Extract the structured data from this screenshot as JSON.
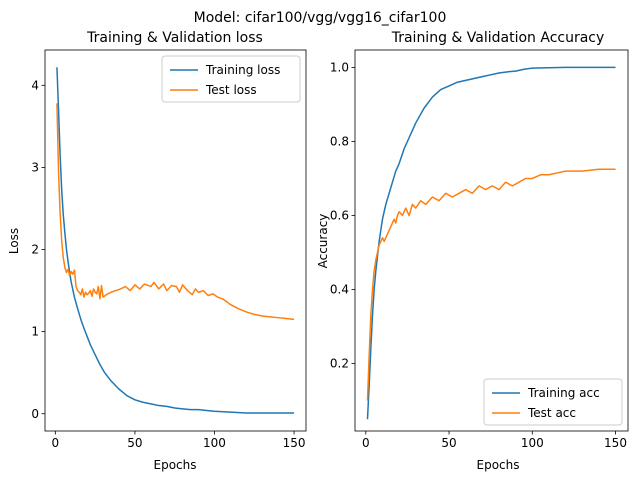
{
  "figure": {
    "suptitle": "Model: cifar100/vgg/vgg16_cifar100"
  },
  "colors": {
    "train": "#1f77b4",
    "test": "#ff7f0e",
    "axis": "#000000"
  },
  "chart_data": [
    {
      "type": "line",
      "title": "Training & Validation loss",
      "xlabel": "Epochs",
      "ylabel": "Loss",
      "xlim": [
        -6.5,
        157.5
      ],
      "ylim": [
        -0.21,
        4.43
      ],
      "xticks": [
        0,
        50,
        100,
        150
      ],
      "yticks": [
        0,
        1,
        2,
        3,
        4
      ],
      "legend_loc": "upper right",
      "series": [
        {
          "name": "Training loss",
          "color": "#1f77b4",
          "x": [
            1,
            2,
            3,
            4,
            5,
            6,
            7,
            8,
            9,
            10,
            12,
            14,
            16,
            18,
            20,
            22,
            25,
            28,
            31,
            35,
            40,
            45,
            50,
            55,
            60,
            65,
            70,
            75,
            80,
            85,
            90,
            95,
            100,
            110,
            120,
            130,
            140,
            150
          ],
          "y": [
            4.22,
            3.7,
            3.15,
            2.72,
            2.42,
            2.2,
            2.0,
            1.85,
            1.72,
            1.6,
            1.42,
            1.28,
            1.15,
            1.04,
            0.94,
            0.84,
            0.72,
            0.6,
            0.5,
            0.4,
            0.3,
            0.22,
            0.17,
            0.14,
            0.12,
            0.1,
            0.09,
            0.07,
            0.06,
            0.05,
            0.05,
            0.04,
            0.03,
            0.02,
            0.01,
            0.01,
            0.01,
            0.01
          ]
        },
        {
          "name": "Test loss",
          "color": "#ff7f0e",
          "x": [
            1,
            2,
            3,
            4,
            5,
            6,
            7,
            8,
            9,
            10,
            11,
            12,
            13,
            14,
            15,
            16,
            17,
            18,
            19,
            20,
            21,
            22,
            23,
            24,
            25,
            26,
            27,
            28,
            29,
            30,
            32,
            35,
            38,
            41,
            44,
            47,
            50,
            53,
            56,
            60,
            62,
            65,
            68,
            70,
            73,
            76,
            78,
            80,
            83,
            86,
            88,
            90,
            93,
            96,
            99,
            102,
            105,
            108,
            110,
            115,
            120,
            125,
            130,
            135,
            140,
            145,
            150
          ],
          "y": [
            3.78,
            2.95,
            2.45,
            2.1,
            1.9,
            1.78,
            1.72,
            1.76,
            1.68,
            1.73,
            1.7,
            1.75,
            1.55,
            1.5,
            1.48,
            1.45,
            1.52,
            1.42,
            1.48,
            1.45,
            1.47,
            1.5,
            1.43,
            1.52,
            1.48,
            1.46,
            1.55,
            1.4,
            1.56,
            1.42,
            1.45,
            1.48,
            1.5,
            1.52,
            1.55,
            1.5,
            1.57,
            1.52,
            1.58,
            1.55,
            1.6,
            1.52,
            1.58,
            1.5,
            1.56,
            1.55,
            1.48,
            1.57,
            1.5,
            1.45,
            1.52,
            1.48,
            1.5,
            1.44,
            1.46,
            1.42,
            1.4,
            1.36,
            1.33,
            1.28,
            1.24,
            1.21,
            1.19,
            1.18,
            1.17,
            1.16,
            1.15
          ]
        }
      ]
    },
    {
      "type": "line",
      "title": "Training & Validation Accuracy",
      "xlabel": "Epochs",
      "ylabel": "Accuracy",
      "xlim": [
        -6.5,
        157.5
      ],
      "ylim": [
        0.018,
        1.047
      ],
      "xticks": [
        0,
        50,
        100,
        150
      ],
      "yticks": [
        0.2,
        0.4,
        0.6,
        0.8,
        1.0
      ],
      "ytick_labels": [
        "0.2",
        "0.4",
        "0.6",
        "0.8",
        "1.0"
      ],
      "legend_loc": "lower right",
      "series": [
        {
          "name": "Training acc",
          "color": "#1f77b4",
          "x": [
            1,
            2,
            3,
            4,
            5,
            6,
            7,
            8,
            9,
            10,
            12,
            14,
            16,
            18,
            20,
            23,
            26,
            30,
            35,
            40,
            45,
            50,
            55,
            60,
            65,
            70,
            75,
            80,
            85,
            90,
            95,
            100,
            110,
            120,
            130,
            140,
            150
          ],
          "y": [
            0.05,
            0.14,
            0.24,
            0.33,
            0.4,
            0.45,
            0.49,
            0.53,
            0.56,
            0.59,
            0.63,
            0.66,
            0.69,
            0.72,
            0.74,
            0.78,
            0.81,
            0.85,
            0.89,
            0.92,
            0.94,
            0.95,
            0.96,
            0.965,
            0.97,
            0.975,
            0.98,
            0.985,
            0.988,
            0.99,
            0.995,
            0.998,
            0.999,
            1.0,
            1.0,
            1.0,
            1.0
          ]
        },
        {
          "name": "Test acc",
          "color": "#ff7f0e",
          "x": [
            1,
            2,
            3,
            4,
            5,
            6,
            7,
            8,
            9,
            10,
            11,
            12,
            13,
            14,
            15,
            16,
            17,
            18,
            19,
            20,
            22,
            24,
            26,
            28,
            30,
            33,
            36,
            40,
            44,
            48,
            52,
            56,
            60,
            64,
            68,
            72,
            76,
            80,
            84,
            88,
            92,
            96,
            100,
            105,
            110,
            115,
            120,
            130,
            140,
            150
          ],
          "y": [
            0.1,
            0.22,
            0.33,
            0.4,
            0.45,
            0.48,
            0.5,
            0.52,
            0.53,
            0.54,
            0.53,
            0.54,
            0.55,
            0.56,
            0.57,
            0.58,
            0.59,
            0.58,
            0.6,
            0.61,
            0.6,
            0.62,
            0.6,
            0.63,
            0.62,
            0.64,
            0.63,
            0.65,
            0.64,
            0.66,
            0.65,
            0.66,
            0.67,
            0.66,
            0.68,
            0.67,
            0.68,
            0.67,
            0.69,
            0.68,
            0.69,
            0.7,
            0.7,
            0.71,
            0.71,
            0.715,
            0.72,
            0.72,
            0.725,
            0.725
          ]
        }
      ]
    }
  ]
}
